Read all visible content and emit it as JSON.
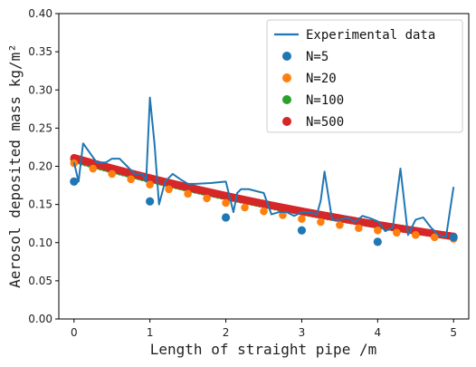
{
  "chart_data": {
    "type": "scatter",
    "xlabel": "Length of straight pipe /m",
    "ylabel": "Aerosol deposited mass kg/m²",
    "xlim": [
      -0.2,
      5.2
    ],
    "ylim": [
      0,
      0.4
    ],
    "xticks": [
      "0",
      "1",
      "2",
      "3",
      "4",
      "5"
    ],
    "yticks": [
      "0.00",
      "0.05",
      "0.10",
      "0.15",
      "0.20",
      "0.25",
      "0.30",
      "0.35",
      "0.40"
    ],
    "legend_position": "top-right",
    "legend": [
      {
        "label": "Experimental data",
        "marker": "line",
        "color": "#1f77b4"
      },
      {
        "label": "N=5",
        "marker": "dot",
        "color": "#1f77b4"
      },
      {
        "label": "N=20",
        "marker": "dot",
        "color": "#ff7f0e"
      },
      {
        "label": "N=100",
        "marker": "dot",
        "color": "#2ca02c"
      },
      {
        "label": "N=500",
        "marker": "dot",
        "color": "#d62728"
      }
    ],
    "series": [
      {
        "name": "Experimental data",
        "type": "line",
        "color": "#1f77b4",
        "x": [
          0,
          0.06,
          0.12,
          0.3,
          0.42,
          0.5,
          0.6,
          0.7,
          0.8,
          0.9,
          0.95,
          1.0,
          1.06,
          1.12,
          1.2,
          1.3,
          1.4,
          1.5,
          1.6,
          1.8,
          2.0,
          2.1,
          2.15,
          2.2,
          2.3,
          2.5,
          2.6,
          2.7,
          2.8,
          2.9,
          3.0,
          3.1,
          3.2,
          3.25,
          3.3,
          3.4,
          3.5,
          3.6,
          3.7,
          3.8,
          3.9,
          4.0,
          4.1,
          4.2,
          4.3,
          4.4,
          4.5,
          4.6,
          4.7,
          4.8,
          4.9,
          5.0
        ],
        "y": [
          0.205,
          0.18,
          0.23,
          0.205,
          0.205,
          0.21,
          0.21,
          0.2,
          0.19,
          0.19,
          0.18,
          0.29,
          0.23,
          0.15,
          0.18,
          0.19,
          0.183,
          0.177,
          0.177,
          0.178,
          0.18,
          0.14,
          0.165,
          0.17,
          0.17,
          0.165,
          0.137,
          0.14,
          0.14,
          0.135,
          0.14,
          0.14,
          0.137,
          0.155,
          0.193,
          0.13,
          0.13,
          0.133,
          0.127,
          0.135,
          0.132,
          0.128,
          0.115,
          0.12,
          0.197,
          0.11,
          0.13,
          0.133,
          0.12,
          0.11,
          0.107,
          0.173
        ]
      },
      {
        "name": "N=5",
        "type": "scatter",
        "color": "#1f77b4",
        "x": [
          0,
          1,
          2,
          3,
          4,
          5
        ],
        "y": [
          0.18,
          0.154,
          0.133,
          0.116,
          0.101,
          0.107
        ]
      },
      {
        "name": "N=20",
        "type": "scatter",
        "color": "#ff7f0e",
        "x": [
          0,
          0.25,
          0.5,
          0.75,
          1.0,
          1.25,
          1.5,
          1.75,
          2.0,
          2.25,
          2.5,
          2.75,
          3.0,
          3.25,
          3.5,
          3.75,
          4.0,
          4.25,
          4.5,
          4.75,
          5.0
        ],
        "y": [
          0.204,
          0.197,
          0.19,
          0.183,
          0.176,
          0.17,
          0.164,
          0.158,
          0.152,
          0.146,
          0.141,
          0.136,
          0.131,
          0.127,
          0.123,
          0.119,
          0.116,
          0.113,
          0.11,
          0.107,
          0.105
        ]
      },
      {
        "name": "N=100",
        "type": "scatter",
        "color": "#2ca02c",
        "curve": {
          "from": 0,
          "to": 5,
          "count": 101,
          "start": 0.209,
          "end": 0.108,
          "decay": 0.135
        }
      },
      {
        "name": "N=500",
        "type": "scatter",
        "color": "#d62728",
        "curve": {
          "from": 0,
          "to": 5,
          "count": 501,
          "start": 0.211,
          "end": 0.108,
          "decay": 0.135
        }
      }
    ]
  }
}
